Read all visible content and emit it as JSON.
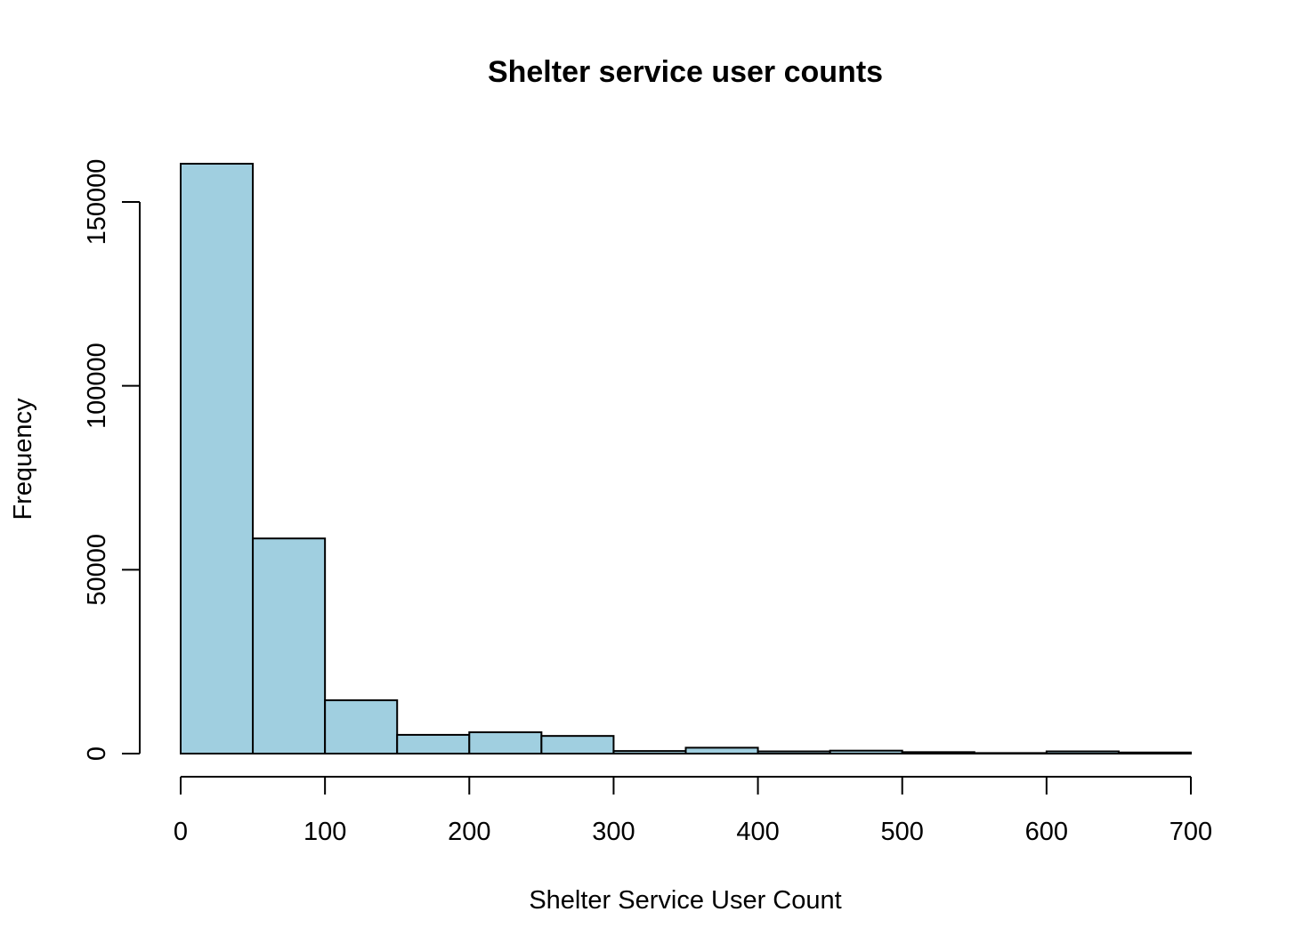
{
  "chart_data": {
    "type": "bar",
    "subtype": "histogram",
    "title": "Shelter service user counts",
    "xlabel": "Shelter Service User Count",
    "ylabel": "Frequency",
    "bin_edges": [
      0,
      50,
      100,
      150,
      200,
      250,
      300,
      350,
      400,
      450,
      500,
      550,
      600,
      650,
      700
    ],
    "values": [
      160400,
      58500,
      14500,
      5100,
      5800,
      4800,
      700,
      1600,
      600,
      800,
      400,
      150,
      600,
      300
    ],
    "xlim": [
      0,
      700
    ],
    "ylim": [
      0,
      160400
    ],
    "xticks": [
      "0",
      "100",
      "200",
      "300",
      "400",
      "500",
      "600",
      "700"
    ],
    "yticks": [
      "0",
      "50000",
      "100000",
      "150000"
    ],
    "grid": false,
    "colors": {
      "bar_fill": "#a0cfe0",
      "bar_stroke": "#000000"
    }
  }
}
